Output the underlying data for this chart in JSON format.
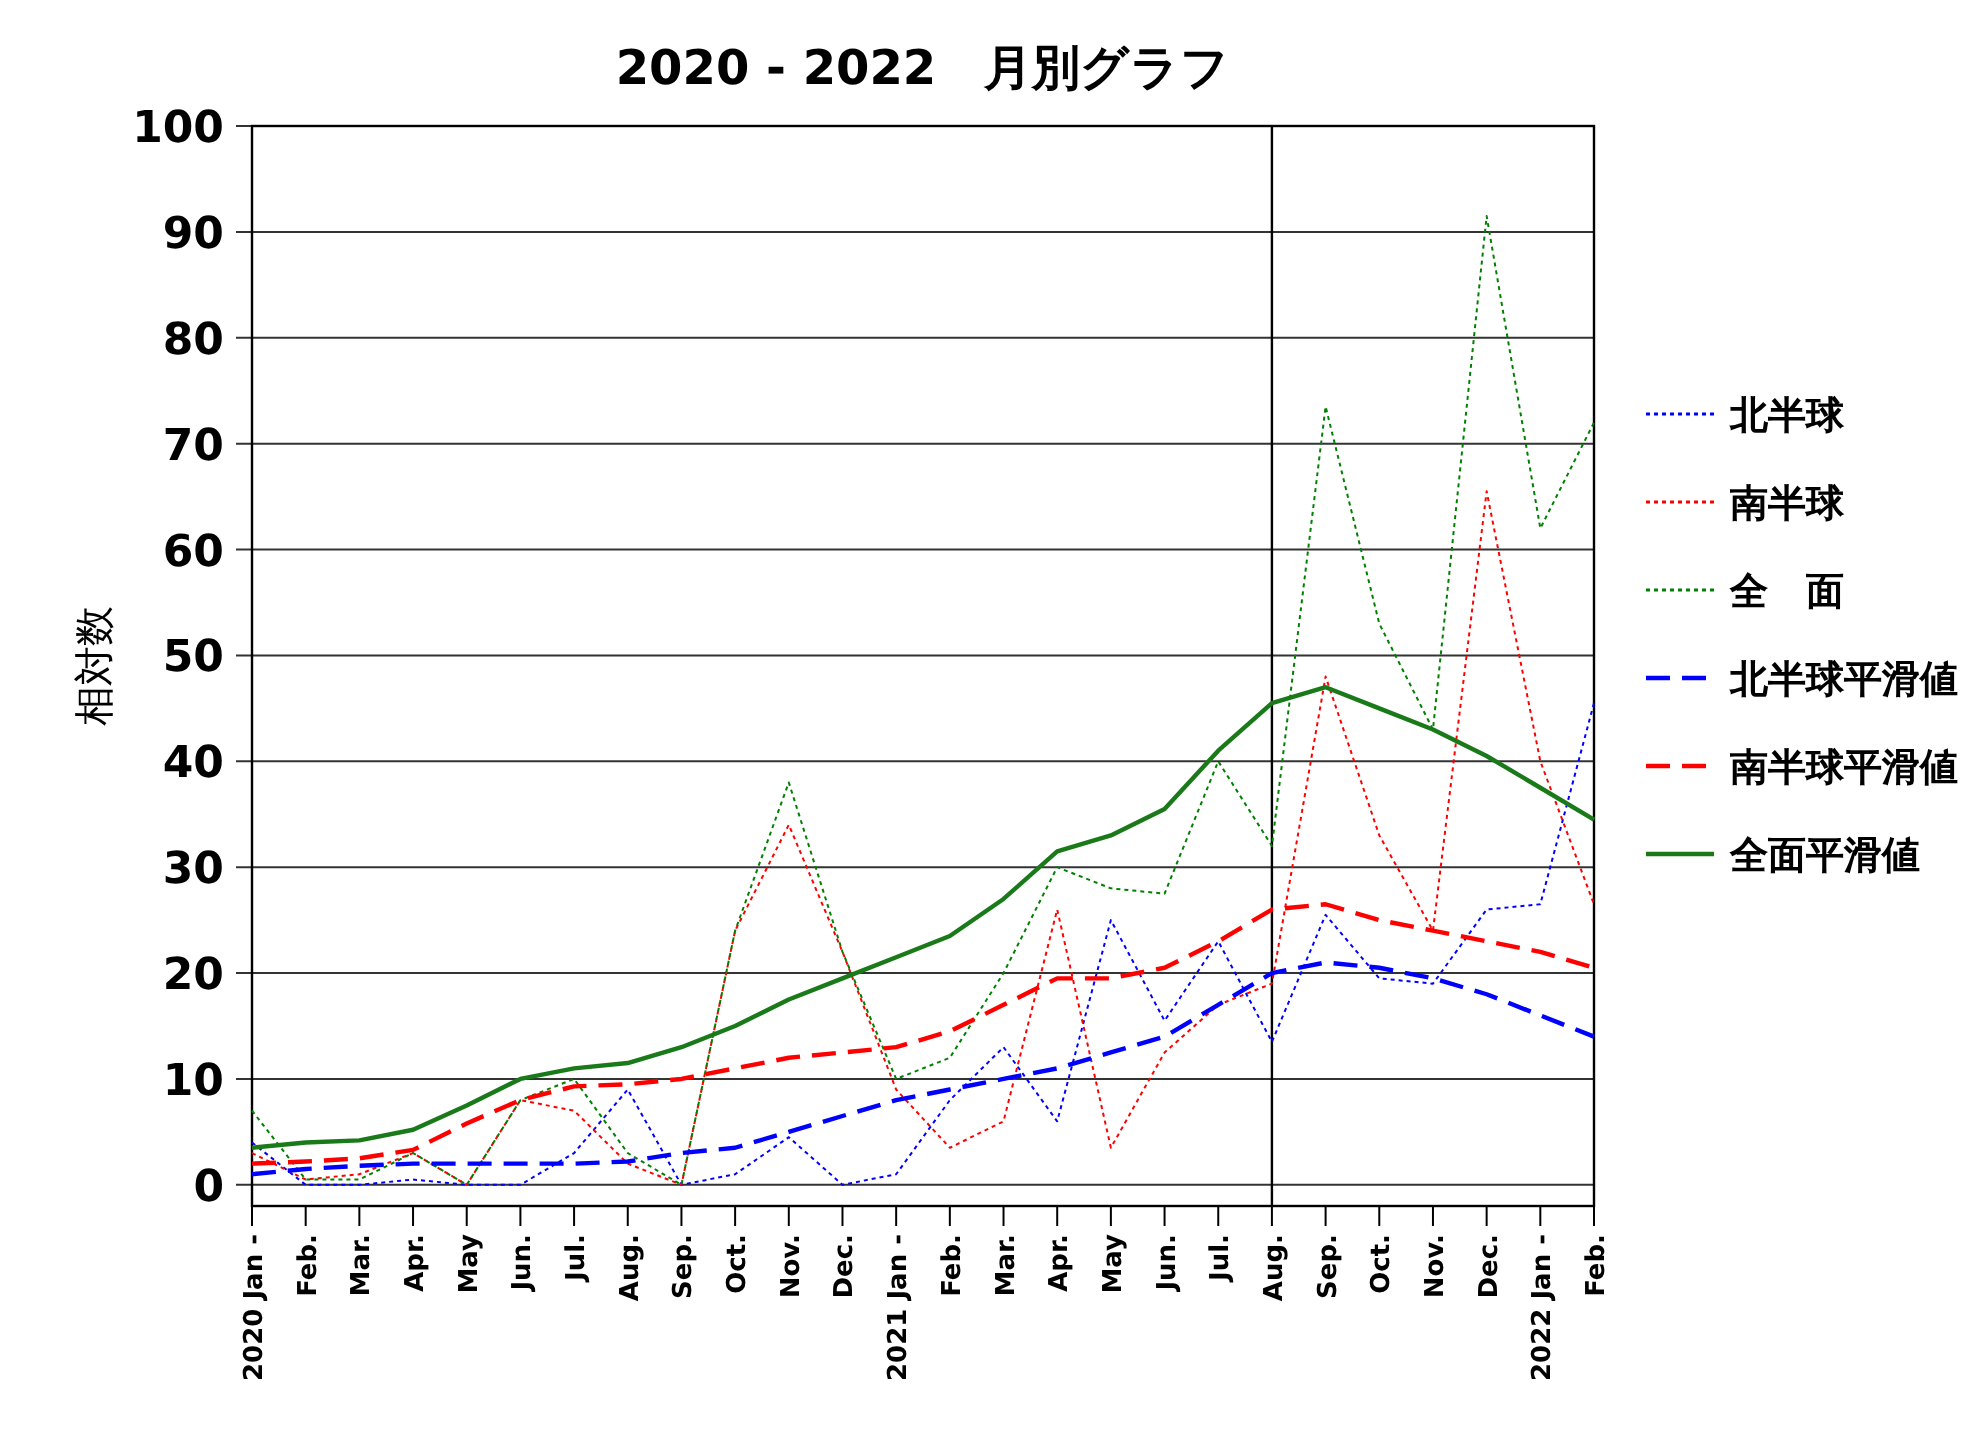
{
  "chart_data": {
    "type": "line",
    "title": "2020 - 2022　月別グラフ",
    "ylabel": "相対数",
    "x": [
      "2020-01",
      "2020-02",
      "2020-03",
      "2020-04",
      "2020-05",
      "2020-06",
      "2020-07",
      "2020-08",
      "2020-09",
      "2020-10",
      "2020-11",
      "2020-12",
      "2021-01",
      "2021-02",
      "2021-03",
      "2021-04",
      "2021-05",
      "2021-06",
      "2021-07",
      "2021-08",
      "2021-09",
      "2021-10",
      "2021-11",
      "2021-12",
      "2022-01",
      "2022-02"
    ],
    "xlim": [
      "2020-01",
      "2022-02"
    ],
    "xticks": [
      {
        "value": "2020-01",
        "label": "2020 Jan -"
      },
      {
        "value": "2020-02",
        "label": "Feb."
      },
      {
        "value": "2020-03",
        "label": "Mar."
      },
      {
        "value": "2020-04",
        "label": "Apr."
      },
      {
        "value": "2020-05",
        "label": "May"
      },
      {
        "value": "2020-06",
        "label": "Jun."
      },
      {
        "value": "2020-07",
        "label": "Jul."
      },
      {
        "value": "2020-08",
        "label": "Aug."
      },
      {
        "value": "2020-09",
        "label": "Sep."
      },
      {
        "value": "2020-10",
        "label": "Oct."
      },
      {
        "value": "2020-11",
        "label": "Nov."
      },
      {
        "value": "2020-12",
        "label": "Dec."
      },
      {
        "value": "2021-01",
        "label": "2021 Jan -"
      },
      {
        "value": "2021-02",
        "label": "Feb."
      },
      {
        "value": "2021-03",
        "label": "Mar."
      },
      {
        "value": "2021-04",
        "label": "Apr."
      },
      {
        "value": "2021-05",
        "label": "May"
      },
      {
        "value": "2021-06",
        "label": "Jun."
      },
      {
        "value": "2021-07",
        "label": "Jul."
      },
      {
        "value": "2021-08",
        "label": "Aug."
      },
      {
        "value": "2021-09",
        "label": "Sep."
      },
      {
        "value": "2021-10",
        "label": "Oct."
      },
      {
        "value": "2021-11",
        "label": "Nov."
      },
      {
        "value": "2021-12",
        "label": "Dec."
      },
      {
        "value": "2022-01",
        "label": "2022 Jan -"
      },
      {
        "value": "2022-02",
        "label": "Feb."
      }
    ],
    "ylim": [
      -2,
      100
    ],
    "yticks": [
      0,
      10,
      20,
      30,
      40,
      50,
      60,
      70,
      80,
      90,
      100
    ],
    "grid": "y",
    "legend": "right",
    "ref_lines": [
      {
        "axis": "x",
        "value": "2021-08",
        "color": "#000000"
      }
    ],
    "series": [
      {
        "name": "北半球",
        "color": "#0000ff",
        "line_style": "dotted",
        "values": [
          4,
          0,
          0,
          0.5,
          0,
          0,
          3,
          9,
          0,
          1,
          4.5,
          0,
          1,
          8,
          13,
          6,
          25,
          15.5,
          23,
          13.5,
          25.5,
          19.5,
          19,
          26,
          26.5,
          45.5
        ]
      },
      {
        "name": "南半球",
        "color": "#ff0000",
        "line_style": "dotted",
        "values": [
          3,
          0.5,
          1,
          3,
          0,
          8,
          7,
          2,
          0,
          24,
          34,
          22,
          9,
          3.5,
          6,
          26,
          3.5,
          12.5,
          17,
          19,
          48,
          33,
          24,
          65.5,
          40,
          26.5
        ]
      },
      {
        "name": "全　面",
        "color": "#008000",
        "line_style": "dotted",
        "values": [
          7,
          0.5,
          0.5,
          3,
          0,
          8,
          10,
          3,
          0,
          24,
          38,
          22,
          10,
          12,
          20,
          30,
          28,
          27.5,
          40,
          32,
          73.5,
          53,
          43,
          91.5,
          62,
          72
        ]
      },
      {
        "name": "北半球平滑値",
        "color": "#0000ff",
        "line_style": "dashed",
        "values": [
          1,
          1.5,
          1.8,
          2,
          2,
          2,
          2,
          2.2,
          3,
          3.5,
          5,
          6.5,
          8,
          9,
          10,
          11,
          12.5,
          14,
          17,
          20,
          21,
          20.5,
          19.5,
          18,
          16,
          14
        ]
      },
      {
        "name": "南半球平滑値",
        "color": "#ff0000",
        "line_style": "dashed",
        "values": [
          2,
          2.2,
          2.5,
          3.3,
          5.8,
          8,
          9.3,
          9.5,
          10,
          11,
          12,
          12.5,
          13,
          14.5,
          17,
          19.5,
          19.5,
          20.5,
          23,
          26,
          26.5,
          25,
          24,
          23,
          22,
          20.5
        ]
      },
      {
        "name": "全面平滑値",
        "color": "#1a7a1a",
        "line_style": "solid",
        "values": [
          3.5,
          4,
          4.2,
          5.2,
          7.5,
          10,
          11,
          11.5,
          13,
          15,
          17.5,
          19.5,
          21.5,
          23.5,
          27,
          31.5,
          33,
          35.5,
          41,
          45.5,
          47,
          45,
          43,
          40.5,
          37.5,
          34.5
        ]
      }
    ]
  }
}
